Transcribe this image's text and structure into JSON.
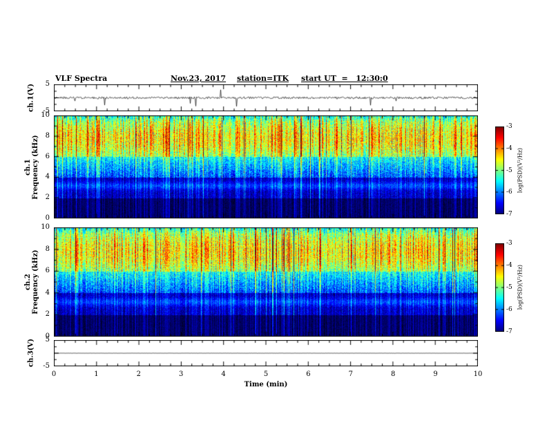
{
  "header": {
    "title": "VLF Spectra",
    "date": "Nov.23, 2017",
    "station": "station=ITK",
    "start_ut": "start UT  =   12:30:0"
  },
  "x_axis": {
    "label": "Time (min)",
    "ticks": [
      0,
      1,
      2,
      3,
      4,
      5,
      6,
      7,
      8,
      9,
      10
    ],
    "range": [
      0,
      10
    ]
  },
  "panels": {
    "wave1": {
      "ylabel": "ch.1(V)",
      "yticks": [
        5,
        -5
      ],
      "yrange": [
        -5,
        5
      ]
    },
    "spec1": {
      "ylabel_ch": "ch.1",
      "ylabel_freq": "Frequency (kHz)",
      "yticks": [
        10,
        8,
        6,
        4,
        2,
        0
      ],
      "yrange": [
        0,
        10
      ]
    },
    "spec2": {
      "ylabel_ch": "ch.2",
      "ylabel_freq": "Frequency (kHz)",
      "yticks": [
        10,
        8,
        6,
        4,
        2,
        0
      ],
      "yrange": [
        0,
        10
      ]
    },
    "wave3": {
      "ylabel": "ch.3(V)",
      "yticks": [
        5,
        -5
      ],
      "yrange": [
        -5,
        5
      ]
    }
  },
  "colorbar": {
    "label": "log(PSD)(V²/Hz)",
    "ticks": [
      -3,
      -4,
      -5,
      -6,
      -7
    ],
    "range": [
      -7,
      -3
    ],
    "colormap": "jet"
  },
  "colors": {
    "background": "#ffffff",
    "axis": "#000000"
  },
  "chart_data": [
    {
      "type": "line",
      "title": "ch.1(V) waveform",
      "xlabel": "Time (min)",
      "xlim": [
        0,
        10
      ],
      "ylabel": "ch.1(V)",
      "ylim": [
        -5,
        5
      ],
      "summary": "broadband noise centered on 0 V, ~±0.5 V envelope, with frequent impulsive spikes reaching about ±4 V"
    },
    {
      "type": "heatmap",
      "title": "ch.1 spectrogram",
      "xlabel": "Time (min)",
      "xlim": [
        0,
        10
      ],
      "ylabel": "Frequency (kHz)",
      "ylim": [
        0,
        10
      ],
      "zlabel": "log(PSD)(V²/Hz)",
      "zlim": [
        -7,
        -3
      ],
      "bands": [
        {
          "f_khz": [
            0,
            2
          ],
          "log_psd": -7.2
        },
        {
          "f_khz": [
            2,
            4
          ],
          "log_psd": -6.7
        },
        {
          "f_khz": [
            3,
            3.6
          ],
          "log_psd": -6.3
        },
        {
          "f_khz": [
            4,
            6
          ],
          "log_psd": -6.0
        },
        {
          "f_khz": [
            6,
            10
          ],
          "log_psd": -4.8
        }
      ],
      "features": "dense vertical sferic streaks spanning 0-10 kHz, strongest columns reaching about -3.5 in the 6-9 kHz band"
    },
    {
      "type": "heatmap",
      "title": "ch.2 spectrogram",
      "xlabel": "Time (min)",
      "xlim": [
        0,
        10
      ],
      "ylabel": "Frequency (kHz)",
      "ylim": [
        0,
        10
      ],
      "zlabel": "log(PSD)(V²/Hz)",
      "zlim": [
        -7,
        -3
      ],
      "bands": [
        {
          "f_khz": [
            0,
            2
          ],
          "log_psd": -7.2
        },
        {
          "f_khz": [
            2,
            4
          ],
          "log_psd": -6.7
        },
        {
          "f_khz": [
            3,
            3.6
          ],
          "log_psd": -6.3
        },
        {
          "f_khz": [
            4,
            6
          ],
          "log_psd": -6.0
        },
        {
          "f_khz": [
            6,
            10
          ],
          "log_psd": -4.8
        }
      ],
      "features": "dense vertical sferic streaks spanning 0-10 kHz, similar to ch.1"
    },
    {
      "type": "line",
      "title": "ch.3(V) waveform",
      "xlabel": "Time (min)",
      "xlim": [
        0,
        10
      ],
      "ylabel": "ch.3(V)",
      "ylim": [
        -5,
        5
      ],
      "summary": "flat line at 0 V (no signal)"
    }
  ]
}
